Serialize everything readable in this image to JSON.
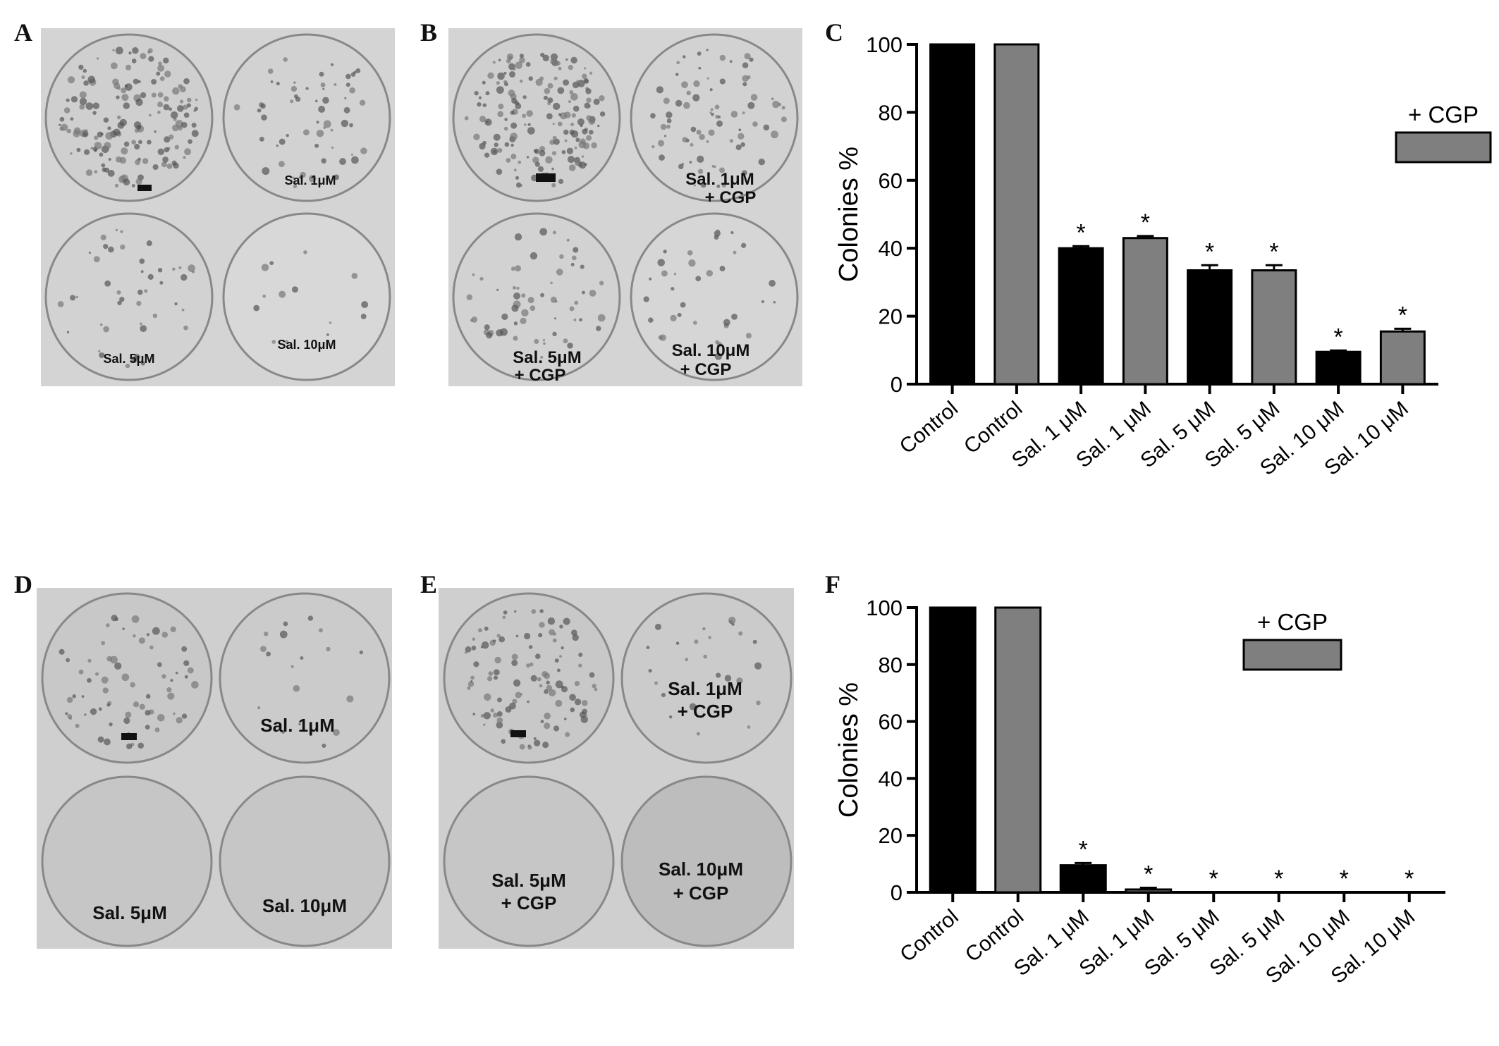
{
  "panels": {
    "a": {
      "letter": "A",
      "labels": [
        "Sal. 1μM",
        "Sal. 5μM",
        "Sal. 10μM"
      ]
    },
    "b": {
      "letter": "B",
      "labels": [
        "Sal. 1μM",
        "+ CGP",
        "Sal. 5μM",
        "+ CGP",
        "Sal. 10μM",
        "+ CGP"
      ]
    },
    "d": {
      "letter": "D",
      "labels": [
        "Sal. 1μM",
        "Sal. 5μM",
        "Sal. 10μM"
      ]
    },
    "e": {
      "letter": "E",
      "labels": [
        "Sal. 1μM",
        "+ CGP",
        "Sal. 5μM",
        "+ CGP",
        "Sal. 10μM",
        "+ CGP"
      ]
    }
  },
  "colors": {
    "black_bar": "#000000",
    "gray_bar": "#7f7f7f",
    "photo_bg": "#d6d6d6"
  },
  "chart_data": [
    {
      "letter": "C",
      "type": "bar",
      "ylabel": "Colonies %",
      "ylim": [
        0,
        100
      ],
      "yticks": [
        0,
        20,
        40,
        60,
        80,
        100
      ],
      "categories": [
        "Control",
        "Control",
        "Sal. 1 μM",
        "Sal. 1 μM",
        "Sal. 5 μM",
        "Sal. 5 μM",
        "Sal. 10 μM",
        "Sal. 10 μM"
      ],
      "values": [
        100,
        100,
        40,
        43,
        33.5,
        33.5,
        9.5,
        15.5
      ],
      "errors": [
        0,
        0,
        0.6,
        0.6,
        1.5,
        1.5,
        0.4,
        0.8
      ],
      "significant": [
        false,
        false,
        true,
        true,
        true,
        true,
        true,
        true
      ],
      "bar_series": [
        "black",
        "gray",
        "black",
        "gray",
        "black",
        "gray",
        "black",
        "gray"
      ],
      "legend": {
        "label": "+ CGP",
        "color": "gray",
        "position": "top-right"
      }
    },
    {
      "letter": "F",
      "type": "bar",
      "ylabel": "Colonies %",
      "ylim": [
        0,
        100
      ],
      "yticks": [
        0,
        20,
        40,
        60,
        80,
        100
      ],
      "categories": [
        "Control",
        "Control",
        "Sal. 1 μM",
        "Sal. 1 μM",
        "Sal. 5 μM",
        "Sal. 5 μM",
        "Sal. 10 μM",
        "Sal. 10 μM"
      ],
      "values": [
        100,
        100,
        9.5,
        1,
        0,
        0,
        0,
        0
      ],
      "errors": [
        0,
        0,
        0.8,
        0.6,
        0,
        0,
        0,
        0
      ],
      "significant": [
        false,
        false,
        true,
        true,
        true,
        true,
        true,
        true
      ],
      "bar_series": [
        "black",
        "gray",
        "black",
        "gray",
        "black",
        "gray",
        "black",
        "gray"
      ],
      "legend": {
        "label": "+ CGP",
        "color": "gray",
        "position": "top-right"
      }
    }
  ]
}
